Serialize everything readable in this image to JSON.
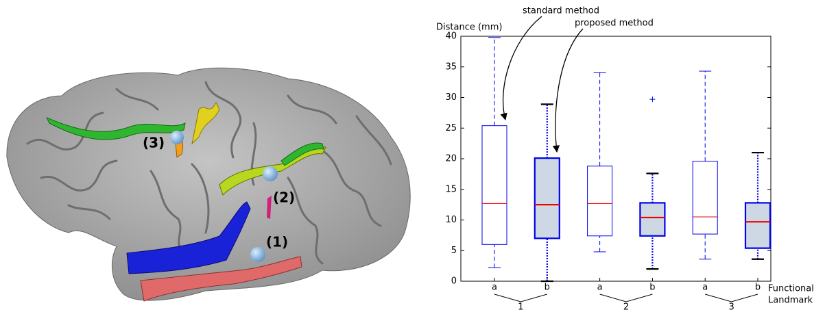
{
  "brain_labels": [
    "(1)",
    "(2)",
    "(3)"
  ],
  "chart_data": {
    "type": "box",
    "ylabel": "Distance (mm)",
    "xlabel": [
      "Functional",
      "Landmark"
    ],
    "annotations": [
      "standard method",
      "proposed method"
    ],
    "categories": [
      "a",
      "b",
      "a",
      "b",
      "a",
      "b"
    ],
    "groups": [
      "1",
      "2",
      "3"
    ],
    "boxes": [
      {
        "whisker_low": 2.2,
        "q1": 6.0,
        "median": 12.7,
        "q3": 25.4,
        "whisker_high": 39.8,
        "outliers": [],
        "fill": "#ffffff",
        "style": "dashed"
      },
      {
        "whisker_low": 0,
        "q1": 7.0,
        "median": 12.5,
        "q3": 20.1,
        "whisker_high": 28.9,
        "outliers": [],
        "fill": "#cdd8e4",
        "style": "dotted"
      },
      {
        "whisker_low": 4.8,
        "q1": 7.4,
        "median": 12.7,
        "q3": 18.8,
        "whisker_high": 34.1,
        "outliers": [],
        "fill": "#ffffff",
        "style": "dashed"
      },
      {
        "whisker_low": 2.0,
        "q1": 7.4,
        "median": 10.4,
        "q3": 12.8,
        "whisker_high": 17.6,
        "outliers": [
          29.7
        ],
        "fill": "#cdd8e4",
        "style": "dotted"
      },
      {
        "whisker_low": 3.6,
        "q1": 7.7,
        "median": 10.5,
        "q3": 19.6,
        "whisker_high": 34.3,
        "outliers": [],
        "fill": "#ffffff",
        "style": "dashed"
      },
      {
        "whisker_low": 3.6,
        "q1": 5.4,
        "median": 9.7,
        "q3": 12.8,
        "whisker_high": 21.0,
        "outliers": [],
        "fill": "#cdd8e4",
        "style": "dotted"
      }
    ],
    "box_color": "#0000ee",
    "median_color": "#ee0000",
    "ylim": [
      0,
      40
    ],
    "yticks": [
      0,
      5,
      10,
      15,
      20,
      25,
      30,
      35,
      40
    ]
  }
}
